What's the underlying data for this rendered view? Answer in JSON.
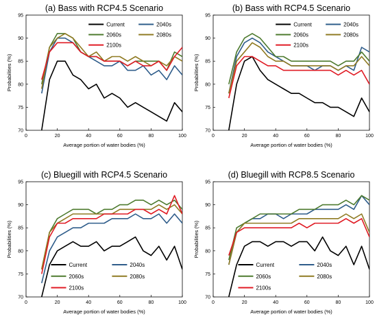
{
  "figure": {
    "panel_titles": [
      "(a) Bass with RCP4.5 Scenario",
      "(b) Bass with RCP4.5 Scenario",
      "(c) Bluegill with RCP4.5 Scenario",
      "(d) Bluegill with RCP8.5 Scenario"
    ]
  },
  "chart_data": [
    {
      "type": "line",
      "title": "(a) Bass with RCP4.5 Scenario",
      "xlabel": "Average portion of water bodies (%)",
      "ylabel": "Probabilities (%)",
      "xlim": [
        0,
        100
      ],
      "ylim": [
        70,
        95
      ],
      "xticks": [
        "0",
        "20",
        "40",
        "60",
        "80",
        "100"
      ],
      "yticks": [
        "70",
        "75",
        "80",
        "85",
        "90",
        "95"
      ],
      "legend_position": "top-right",
      "colors": {
        "Current": "#000000",
        "2040s": "#2e5c8a",
        "2060s": "#4d7a2e",
        "2080s": "#8f7a22",
        "2100s": "#e01b24"
      },
      "x": [
        10,
        15,
        20,
        25,
        30,
        35,
        40,
        45,
        50,
        55,
        60,
        65,
        70,
        75,
        80,
        85,
        90,
        95,
        100
      ],
      "series": [
        {
          "name": "Current",
          "values": [
            70,
            81,
            85,
            85,
            82,
            81,
            79,
            80,
            77,
            78,
            77,
            75,
            76,
            75,
            74,
            73,
            72,
            76,
            74
          ]
        },
        {
          "name": "2040s",
          "values": [
            78,
            87,
            90,
            90,
            89,
            87,
            86,
            85,
            84,
            84,
            85,
            83,
            83,
            84,
            82,
            83,
            81,
            84,
            82
          ]
        },
        {
          "name": "2060s",
          "values": [
            80,
            88,
            91,
            91,
            90,
            87,
            86,
            86,
            85,
            85,
            85,
            84,
            85,
            85,
            85,
            85,
            83,
            87,
            86
          ]
        },
        {
          "name": "2080s",
          "values": [
            79,
            88,
            90,
            91,
            90,
            88,
            86,
            87,
            85,
            86,
            86,
            85,
            86,
            85,
            84,
            85,
            84,
            86,
            85
          ]
        },
        {
          "name": "2100s",
          "values": [
            81,
            87,
            89,
            89,
            89,
            87,
            86,
            86,
            85,
            85,
            85,
            84,
            85,
            84,
            84,
            85,
            83,
            86,
            88
          ]
        }
      ]
    },
    {
      "type": "line",
      "title": "(b) Bass with RCP4.5 Scenario",
      "xlabel": "Average portion of water bodies (%)",
      "ylabel": "Probabilities (%)",
      "xlim": [
        0,
        100
      ],
      "ylim": [
        70,
        95
      ],
      "xticks": [
        "0",
        "20",
        "40",
        "60",
        "80",
        "100"
      ],
      "yticks": [
        "70",
        "75",
        "80",
        "85",
        "90",
        "95"
      ],
      "legend_position": "top-right",
      "colors": {
        "Current": "#000000",
        "2040s": "#2e5c8a",
        "2060s": "#4d7a2e",
        "2080s": "#8f7a22",
        "2100s": "#e01b24"
      },
      "x": [
        10,
        15,
        20,
        25,
        30,
        35,
        40,
        45,
        50,
        55,
        60,
        65,
        70,
        75,
        80,
        85,
        90,
        95,
        100
      ],
      "series": [
        {
          "name": "Current",
          "values": [
            70,
            80,
            85,
            86,
            83,
            81,
            80,
            79,
            78,
            78,
            77,
            76,
            76,
            75,
            75,
            74,
            73,
            77,
            74
          ]
        },
        {
          "name": "2040s",
          "values": [
            78,
            86,
            89,
            90,
            89,
            87,
            86,
            85,
            84,
            84,
            84,
            83,
            84,
            84,
            83,
            84,
            83,
            88,
            87
          ]
        },
        {
          "name": "2060s",
          "values": [
            80,
            87,
            90,
            91,
            90,
            88,
            86,
            86,
            85,
            85,
            85,
            85,
            85,
            85,
            84,
            85,
            85,
            87,
            85
          ]
        },
        {
          "name": "2080s",
          "values": [
            78,
            85,
            87,
            89,
            88,
            86,
            85,
            85,
            84,
            84,
            84,
            84,
            84,
            84,
            83,
            84,
            84,
            86,
            84
          ]
        },
        {
          "name": "2100s",
          "values": [
            77,
            84,
            86,
            86,
            85,
            84,
            84,
            83,
            83,
            83,
            83,
            83,
            83,
            83,
            82,
            83,
            82,
            83,
            80
          ]
        }
      ]
    },
    {
      "type": "line",
      "title": "(c) Bluegill with RCP4.5 Scenario",
      "xlabel": "Average portion of water bodies (%)",
      "ylabel": "Probabilities (%)",
      "xlim": [
        0,
        100
      ],
      "ylim": [
        70,
        95
      ],
      "xticks": [
        "0",
        "20",
        "40",
        "60",
        "80",
        "100"
      ],
      "yticks": [
        "70",
        "75",
        "80",
        "85",
        "90",
        "95"
      ],
      "legend_position": "bottom-right",
      "colors": {
        "Current": "#000000",
        "2040s": "#2e5c8a",
        "2060s": "#4d7a2e",
        "2080s": "#8f7a22",
        "2100s": "#e01b24"
      },
      "x": [
        10,
        15,
        20,
        25,
        30,
        35,
        40,
        45,
        50,
        55,
        60,
        65,
        70,
        75,
        80,
        85,
        90,
        95,
        100
      ],
      "series": [
        {
          "name": "Current",
          "values": [
            70,
            77,
            80,
            81,
            82,
            81,
            81,
            82,
            80,
            81,
            81,
            82,
            83,
            80,
            79,
            81,
            78,
            81,
            76
          ]
        },
        {
          "name": "2040s",
          "values": [
            73,
            80,
            83,
            84,
            85,
            85,
            86,
            86,
            86,
            87,
            87,
            87,
            88,
            87,
            87,
            88,
            86,
            88,
            86
          ]
        },
        {
          "name": "2060s",
          "values": [
            76,
            84,
            87,
            88,
            89,
            89,
            89,
            88,
            89,
            89,
            90,
            90,
            91,
            91,
            90,
            91,
            90,
            91,
            89
          ]
        },
        {
          "name": "2080s",
          "values": [
            76,
            84,
            86,
            87,
            88,
            88,
            88,
            88,
            88,
            88,
            89,
            89,
            89,
            89,
            89,
            90,
            89,
            90,
            88
          ]
        },
        {
          "name": "2100s",
          "values": [
            75,
            83,
            86,
            86,
            87,
            87,
            87,
            87,
            88,
            88,
            88,
            88,
            89,
            89,
            88,
            89,
            88,
            92,
            88
          ]
        }
      ]
    },
    {
      "type": "line",
      "title": "(d) Bluegill with RCP8.5 Scenario",
      "xlabel": "Average portion of water bodies (%)",
      "ylabel": "Probabilities (%)",
      "xlim": [
        0,
        100
      ],
      "ylim": [
        70,
        95
      ],
      "xticks": [
        "0",
        "20",
        "40",
        "60",
        "80",
        "100"
      ],
      "yticks": [
        "70",
        "75",
        "80",
        "85",
        "90",
        "95"
      ],
      "legend_position": "bottom-right",
      "colors": {
        "Current": "#000000",
        "2040s": "#2e5c8a",
        "2060s": "#4d7a2e",
        "2080s": "#8f7a22",
        "2100s": "#e01b24"
      },
      "x": [
        10,
        15,
        20,
        25,
        30,
        35,
        40,
        45,
        50,
        55,
        60,
        65,
        70,
        75,
        80,
        85,
        90,
        95,
        100
      ],
      "series": [
        {
          "name": "Current",
          "values": [
            70,
            77,
            81,
            82,
            82,
            81,
            82,
            82,
            81,
            82,
            82,
            80,
            83,
            80,
            79,
            81,
            77,
            81,
            76
          ]
        },
        {
          "name": "2040s",
          "values": [
            77,
            84,
            86,
            87,
            87,
            88,
            88,
            87,
            88,
            88,
            88,
            89,
            89,
            89,
            89,
            90,
            89,
            92,
            90
          ]
        },
        {
          "name": "2060s",
          "values": [
            78,
            85,
            86,
            87,
            88,
            88,
            88,
            88,
            88,
            89,
            89,
            89,
            90,
            90,
            90,
            91,
            90,
            92,
            91
          ]
        },
        {
          "name": "2080s",
          "values": [
            77,
            84,
            86,
            86,
            86,
            86,
            86,
            86,
            86,
            87,
            87,
            87,
            87,
            87,
            87,
            88,
            87,
            88,
            84
          ]
        },
        {
          "name": "2100s",
          "values": [
            79,
            84,
            85,
            85,
            85,
            85,
            85,
            85,
            85,
            86,
            85,
            86,
            86,
            86,
            86,
            87,
            86,
            87,
            83
          ]
        }
      ]
    }
  ]
}
